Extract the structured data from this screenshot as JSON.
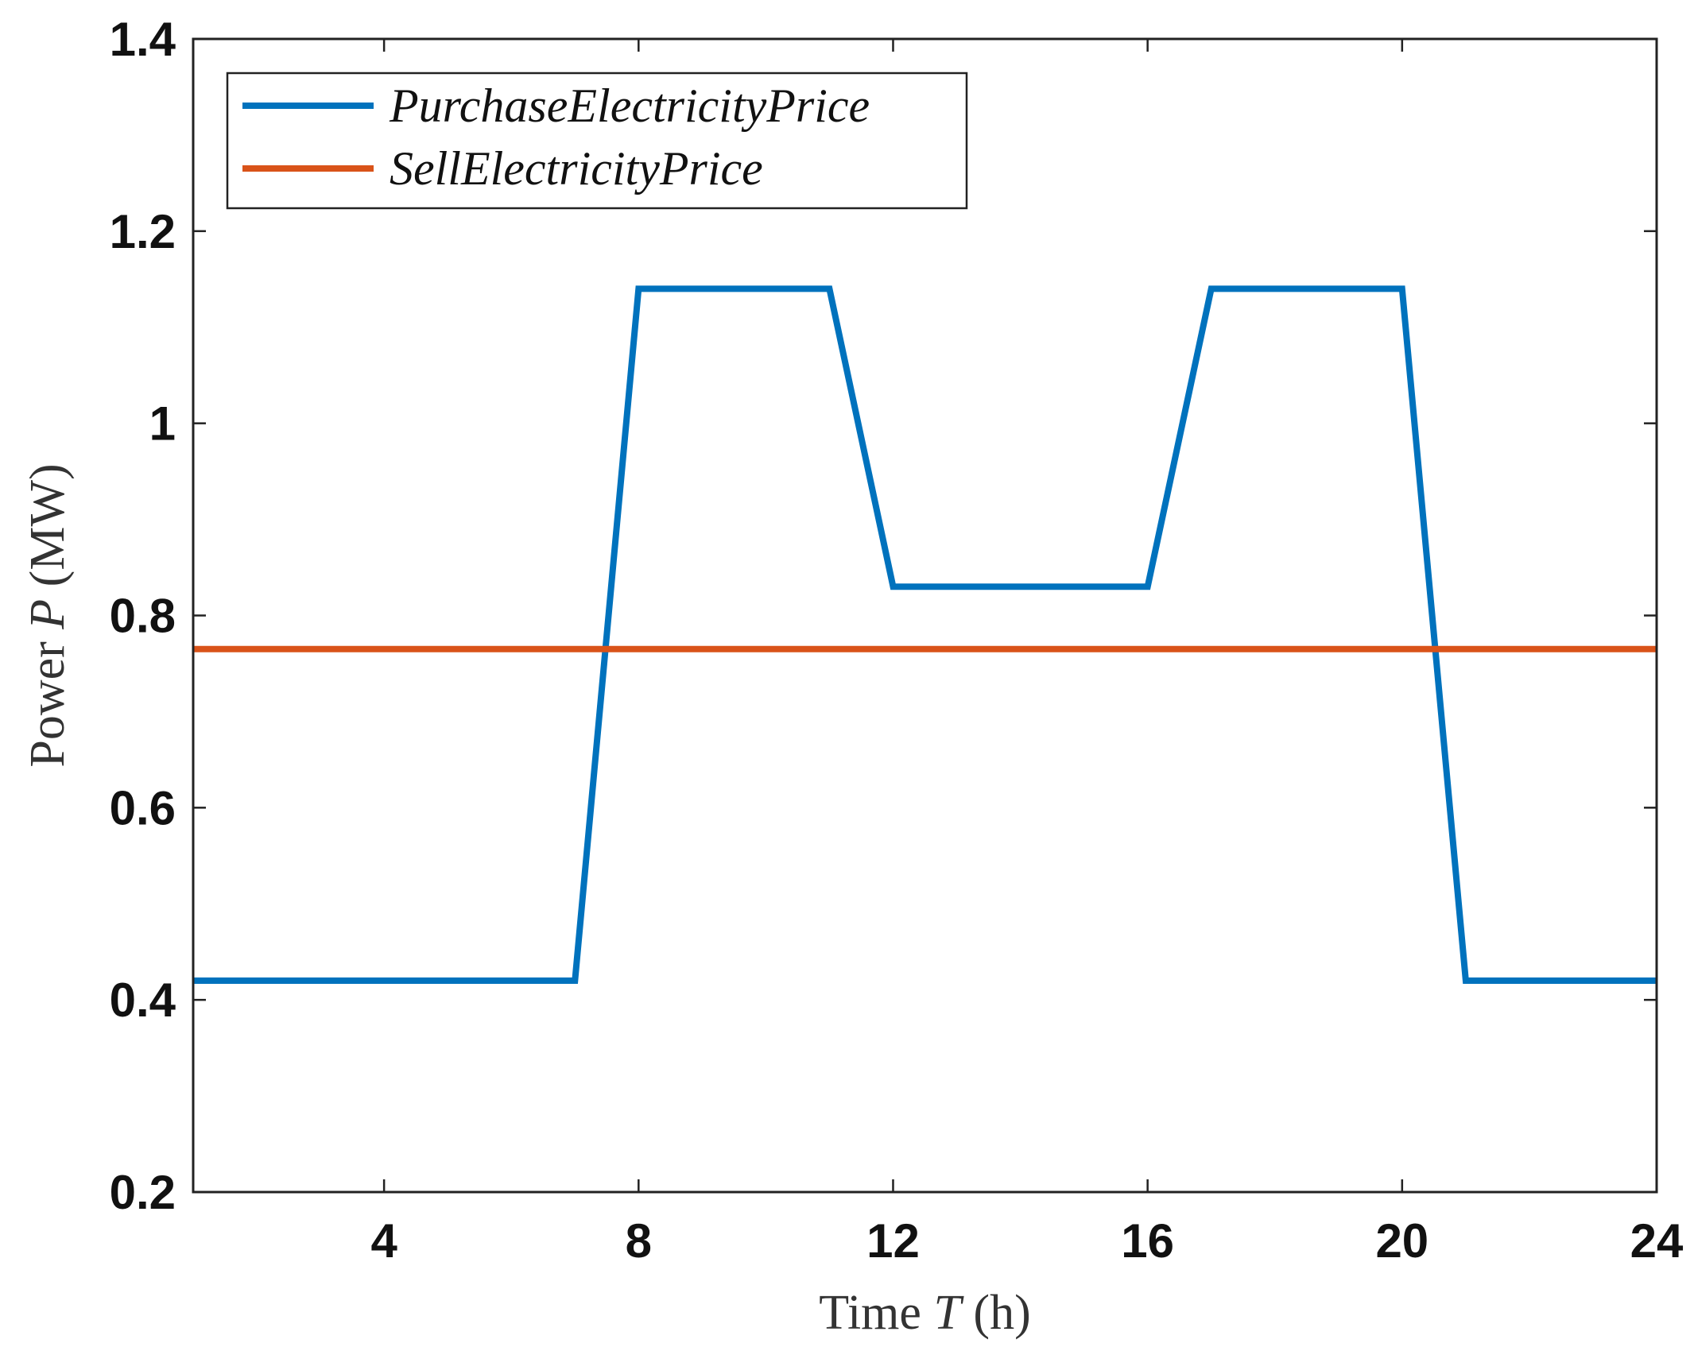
{
  "chart_data": {
    "type": "line",
    "title": "",
    "xlabel": {
      "prefix": "Time ",
      "symbol": "T",
      "suffix": " (h)"
    },
    "ylabel": {
      "prefix": "Power ",
      "symbol": "P",
      "suffix": " (MW)"
    },
    "xlim": [
      1,
      24
    ],
    "ylim": [
      0.2,
      1.4
    ],
    "xticks": [
      4,
      8,
      12,
      16,
      20,
      24
    ],
    "yticks": [
      0.2,
      0.4,
      0.6,
      0.8,
      1,
      1.2,
      1.4
    ],
    "xtick_labels": [
      "4",
      "8",
      "12",
      "16",
      "20",
      "24"
    ],
    "ytick_labels": [
      "0.2",
      "0.4",
      "0.6",
      "0.8",
      "1",
      "1.2",
      "1.4"
    ],
    "grid": false,
    "legend_position": "top-left",
    "x": [
      1,
      2,
      3,
      4,
      5,
      6,
      7,
      8,
      9,
      10,
      11,
      12,
      13,
      14,
      15,
      16,
      17,
      18,
      19,
      20,
      21,
      22,
      23,
      24
    ],
    "series": [
      {
        "name": "PurchaseElectricityPrice",
        "color": "#0072BD",
        "values": [
          0.42,
          0.42,
          0.42,
          0.42,
          0.42,
          0.42,
          0.42,
          1.14,
          1.14,
          1.14,
          1.14,
          0.83,
          0.83,
          0.83,
          0.83,
          0.83,
          1.14,
          1.14,
          1.14,
          1.14,
          0.42,
          0.42,
          0.42,
          0.42
        ]
      },
      {
        "name": "SellElectricityPrice",
        "color": "#D95319",
        "values": [
          0.765,
          0.765,
          0.765,
          0.765,
          0.765,
          0.765,
          0.765,
          0.765,
          0.765,
          0.765,
          0.765,
          0.765,
          0.765,
          0.765,
          0.765,
          0.765,
          0.765,
          0.765,
          0.765,
          0.765,
          0.765,
          0.765,
          0.765,
          0.765
        ]
      }
    ]
  }
}
